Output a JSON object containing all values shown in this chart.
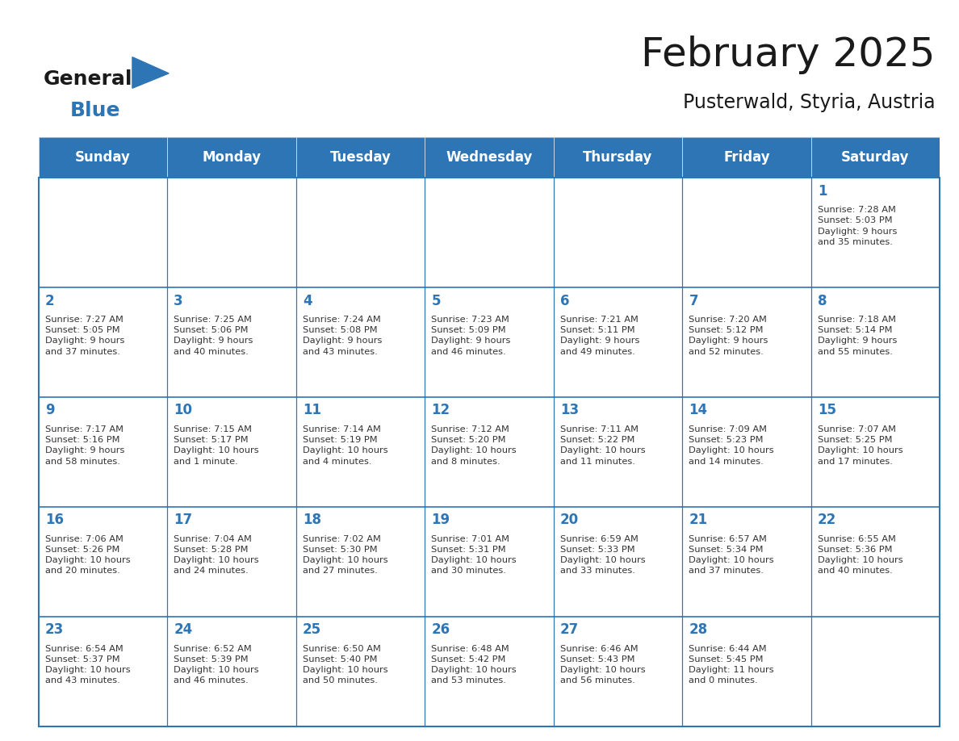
{
  "title": "February 2025",
  "subtitle": "Pusterwald, Styria, Austria",
  "header_bg": "#2E75B6",
  "header_text_color": "#FFFFFF",
  "cell_bg": "#FFFFFF",
  "alt_cell_bg": "#FFFFFF",
  "border_color": "#2E75B6",
  "day_headers": [
    "Sunday",
    "Monday",
    "Tuesday",
    "Wednesday",
    "Thursday",
    "Friday",
    "Saturday"
  ],
  "title_color": "#1a1a1a",
  "subtitle_color": "#1a1a1a",
  "day_number_color": "#2E75B6",
  "cell_text_color": "#333333",
  "weeks": [
    [
      {
        "day": "",
        "info": ""
      },
      {
        "day": "",
        "info": ""
      },
      {
        "day": "",
        "info": ""
      },
      {
        "day": "",
        "info": ""
      },
      {
        "day": "",
        "info": ""
      },
      {
        "day": "",
        "info": ""
      },
      {
        "day": "1",
        "info": "Sunrise: 7:28 AM\nSunset: 5:03 PM\nDaylight: 9 hours\nand 35 minutes."
      }
    ],
    [
      {
        "day": "2",
        "info": "Sunrise: 7:27 AM\nSunset: 5:05 PM\nDaylight: 9 hours\nand 37 minutes."
      },
      {
        "day": "3",
        "info": "Sunrise: 7:25 AM\nSunset: 5:06 PM\nDaylight: 9 hours\nand 40 minutes."
      },
      {
        "day": "4",
        "info": "Sunrise: 7:24 AM\nSunset: 5:08 PM\nDaylight: 9 hours\nand 43 minutes."
      },
      {
        "day": "5",
        "info": "Sunrise: 7:23 AM\nSunset: 5:09 PM\nDaylight: 9 hours\nand 46 minutes."
      },
      {
        "day": "6",
        "info": "Sunrise: 7:21 AM\nSunset: 5:11 PM\nDaylight: 9 hours\nand 49 minutes."
      },
      {
        "day": "7",
        "info": "Sunrise: 7:20 AM\nSunset: 5:12 PM\nDaylight: 9 hours\nand 52 minutes."
      },
      {
        "day": "8",
        "info": "Sunrise: 7:18 AM\nSunset: 5:14 PM\nDaylight: 9 hours\nand 55 minutes."
      }
    ],
    [
      {
        "day": "9",
        "info": "Sunrise: 7:17 AM\nSunset: 5:16 PM\nDaylight: 9 hours\nand 58 minutes."
      },
      {
        "day": "10",
        "info": "Sunrise: 7:15 AM\nSunset: 5:17 PM\nDaylight: 10 hours\nand 1 minute."
      },
      {
        "day": "11",
        "info": "Sunrise: 7:14 AM\nSunset: 5:19 PM\nDaylight: 10 hours\nand 4 minutes."
      },
      {
        "day": "12",
        "info": "Sunrise: 7:12 AM\nSunset: 5:20 PM\nDaylight: 10 hours\nand 8 minutes."
      },
      {
        "day": "13",
        "info": "Sunrise: 7:11 AM\nSunset: 5:22 PM\nDaylight: 10 hours\nand 11 minutes."
      },
      {
        "day": "14",
        "info": "Sunrise: 7:09 AM\nSunset: 5:23 PM\nDaylight: 10 hours\nand 14 minutes."
      },
      {
        "day": "15",
        "info": "Sunrise: 7:07 AM\nSunset: 5:25 PM\nDaylight: 10 hours\nand 17 minutes."
      }
    ],
    [
      {
        "day": "16",
        "info": "Sunrise: 7:06 AM\nSunset: 5:26 PM\nDaylight: 10 hours\nand 20 minutes."
      },
      {
        "day": "17",
        "info": "Sunrise: 7:04 AM\nSunset: 5:28 PM\nDaylight: 10 hours\nand 24 minutes."
      },
      {
        "day": "18",
        "info": "Sunrise: 7:02 AM\nSunset: 5:30 PM\nDaylight: 10 hours\nand 27 minutes."
      },
      {
        "day": "19",
        "info": "Sunrise: 7:01 AM\nSunset: 5:31 PM\nDaylight: 10 hours\nand 30 minutes."
      },
      {
        "day": "20",
        "info": "Sunrise: 6:59 AM\nSunset: 5:33 PM\nDaylight: 10 hours\nand 33 minutes."
      },
      {
        "day": "21",
        "info": "Sunrise: 6:57 AM\nSunset: 5:34 PM\nDaylight: 10 hours\nand 37 minutes."
      },
      {
        "day": "22",
        "info": "Sunrise: 6:55 AM\nSunset: 5:36 PM\nDaylight: 10 hours\nand 40 minutes."
      }
    ],
    [
      {
        "day": "23",
        "info": "Sunrise: 6:54 AM\nSunset: 5:37 PM\nDaylight: 10 hours\nand 43 minutes."
      },
      {
        "day": "24",
        "info": "Sunrise: 6:52 AM\nSunset: 5:39 PM\nDaylight: 10 hours\nand 46 minutes."
      },
      {
        "day": "25",
        "info": "Sunrise: 6:50 AM\nSunset: 5:40 PM\nDaylight: 10 hours\nand 50 minutes."
      },
      {
        "day": "26",
        "info": "Sunrise: 6:48 AM\nSunset: 5:42 PM\nDaylight: 10 hours\nand 53 minutes."
      },
      {
        "day": "27",
        "info": "Sunrise: 6:46 AM\nSunset: 5:43 PM\nDaylight: 10 hours\nand 56 minutes."
      },
      {
        "day": "28",
        "info": "Sunrise: 6:44 AM\nSunset: 5:45 PM\nDaylight: 11 hours\nand 0 minutes."
      },
      {
        "day": "",
        "info": ""
      }
    ]
  ],
  "logo_text_general": "General",
  "logo_text_blue": "Blue",
  "logo_triangle_color": "#2E75B6"
}
